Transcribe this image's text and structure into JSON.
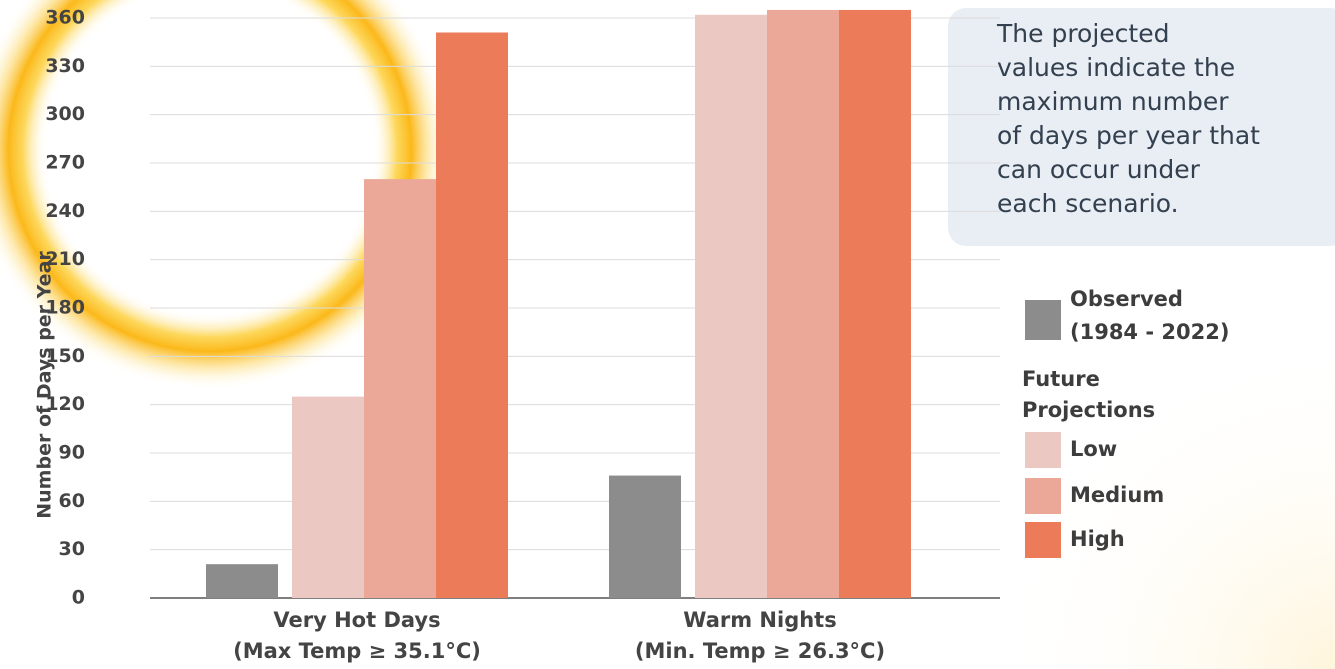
{
  "chart_data": {
    "type": "bar",
    "y_label": "Number of Days per Year",
    "categories": [
      [
        "Very Hot Days",
        "(Max Temp ≥ 35.1°C)"
      ],
      [
        "Warm Nights",
        "(Min. Temp ≥ 26.3°C)"
      ]
    ],
    "series": [
      {
        "name": "Observed (1984 - 2022)",
        "color": "#8c8c8c",
        "values": [
          21,
          76
        ]
      },
      {
        "name": "Low",
        "color": "#ebc8c1",
        "values": [
          125,
          362
        ]
      },
      {
        "name": "Medium",
        "color": "#eba898",
        "values": [
          260,
          365
        ]
      },
      {
        "name": "High",
        "color": "#ec7b5a",
        "values": [
          351,
          365
        ]
      }
    ],
    "legend_group_label": "Future Projections",
    "annotation": [
      "The projected",
      "values indicate the",
      "maximum number",
      "of days per year that",
      "can occur under",
      "each scenario."
    ],
    "ylim": [
      0,
      368
    ],
    "yticks": [
      0,
      30,
      60,
      90,
      120,
      150,
      180,
      210,
      240,
      270,
      300,
      330,
      360
    ],
    "grid": true,
    "legend": "right"
  }
}
